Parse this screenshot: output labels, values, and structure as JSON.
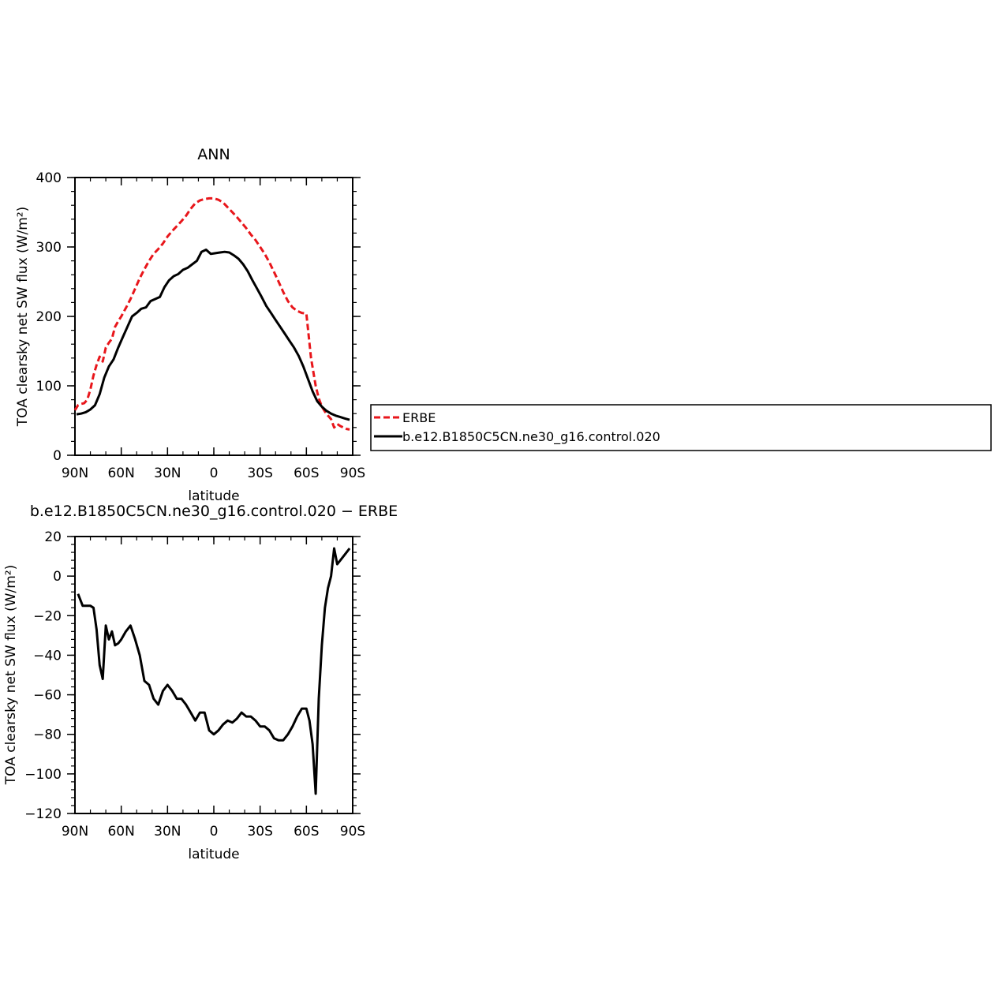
{
  "chart_data": [
    {
      "type": "line",
      "title": "ANN",
      "xlabel": "latitude",
      "ylabel": "TOA clearsky net SW flux (W/m²)",
      "xlim": [
        90,
        -90
      ],
      "ylim": [
        0,
        400
      ],
      "x_ticks": [
        90,
        60,
        30,
        0,
        -30,
        -60,
        -90
      ],
      "x_tick_labels": [
        "90N",
        "60N",
        "30N",
        "0",
        "30S",
        "60S",
        "90S"
      ],
      "y_ticks": [
        0,
        100,
        200,
        300,
        400
      ],
      "y_tick_labels": [
        "0",
        "100",
        "200",
        "300",
        "400"
      ],
      "legend": {
        "placement": "right",
        "entries": [
          {
            "label": "ERBE",
            "color": "#e8161b",
            "dash": true
          },
          {
            "label": "b.e12.B1850C5CN.ne30_g16.control.020",
            "color": "#000000",
            "dash": false
          }
        ]
      },
      "series": [
        {
          "name": "ERBE",
          "color": "#e8161b",
          "dash": true,
          "x": [
            90,
            88,
            86,
            84,
            82,
            80,
            78,
            76,
            74,
            72,
            70,
            68,
            66,
            64,
            62,
            60,
            57,
            54,
            51,
            48,
            45,
            42,
            39,
            36,
            33,
            30,
            27,
            24,
            21,
            18,
            15,
            12,
            9,
            6,
            3,
            0,
            -3,
            -6,
            -9,
            -12,
            -15,
            -18,
            -21,
            -24,
            -27,
            -30,
            -33,
            -36,
            -39,
            -42,
            -45,
            -48,
            -51,
            -54,
            -57,
            -60,
            -63,
            -66,
            -68,
            -70,
            -72,
            -74,
            -76,
            -78,
            -80,
            -82,
            -84,
            -86,
            -88
          ],
          "y": [
            65,
            72,
            74,
            75,
            80,
            95,
            115,
            130,
            142,
            135,
            155,
            162,
            168,
            185,
            193,
            200,
            212,
            225,
            240,
            255,
            268,
            280,
            290,
            297,
            305,
            315,
            323,
            330,
            337,
            345,
            355,
            363,
            367,
            369,
            370,
            370,
            368,
            364,
            357,
            350,
            343,
            335,
            327,
            318,
            310,
            300,
            290,
            278,
            264,
            250,
            235,
            222,
            213,
            208,
            205,
            204,
            140,
            100,
            82,
            70,
            63,
            57,
            52,
            40,
            45,
            42,
            40,
            38,
            37
          ]
        },
        {
          "name": "b.e12.B1850C5CN.ne30_g16.control.020",
          "color": "#000000",
          "dash": false,
          "x": [
            89,
            86,
            83,
            80,
            77,
            74,
            71,
            68,
            65,
            62,
            59,
            56,
            53,
            50,
            47,
            44,
            41,
            38,
            35,
            32,
            29,
            26,
            23,
            20,
            17,
            14,
            11,
            8,
            5,
            2,
            -1,
            -4,
            -7,
            -10,
            -13,
            -16,
            -19,
            -22,
            -25,
            -28,
            -31,
            -34,
            -37,
            -40,
            -43,
            -46,
            -49,
            -52,
            -55,
            -58,
            -61,
            -64,
            -67,
            -70,
            -73,
            -76,
            -79,
            -82,
            -85,
            -88
          ],
          "y": [
            59,
            60,
            62,
            66,
            72,
            88,
            112,
            128,
            138,
            155,
            170,
            185,
            200,
            205,
            211,
            213,
            222,
            225,
            228,
            242,
            252,
            258,
            261,
            267,
            270,
            275,
            280,
            293,
            296,
            290,
            291,
            292,
            293,
            292,
            288,
            283,
            275,
            265,
            252,
            240,
            228,
            215,
            205,
            195,
            185,
            175,
            165,
            155,
            143,
            128,
            110,
            92,
            78,
            70,
            64,
            60,
            57,
            55,
            53,
            51
          ]
        }
      ]
    },
    {
      "type": "line",
      "title": "b.e12.B1850C5CN.ne30_g16.control.020 − ERBE",
      "xlabel": "latitude",
      "ylabel": "TOA clearsky net SW flux (W/m²)",
      "xlim": [
        90,
        -90
      ],
      "ylim": [
        -120,
        20
      ],
      "x_ticks": [
        90,
        60,
        30,
        0,
        -30,
        -60,
        -90
      ],
      "x_tick_labels": [
        "90N",
        "60N",
        "30N",
        "0",
        "30S",
        "60S",
        "90S"
      ],
      "y_ticks": [
        20,
        0,
        -20,
        -40,
        -60,
        -80,
        -100,
        -120
      ],
      "y_tick_labels": [
        "20",
        "0",
        "−20",
        "−40",
        "−60",
        "−80",
        "−100",
        "−120"
      ],
      "series": [
        {
          "color": "#000000",
          "dash": false,
          "x": [
            88,
            85,
            82,
            80,
            78,
            76,
            74,
            72,
            70,
            68,
            66,
            64,
            62,
            60,
            57,
            54,
            51,
            48,
            45,
            42,
            39,
            36,
            33,
            30,
            27,
            24,
            21,
            18,
            15,
            12,
            9,
            6,
            3,
            0,
            -3,
            -6,
            -9,
            -12,
            -15,
            -18,
            -21,
            -24,
            -27,
            -30,
            -33,
            -36,
            -39,
            -42,
            -45,
            -48,
            -51,
            -54,
            -57,
            -60,
            -62,
            -64,
            -66,
            -68,
            -70,
            -72,
            -74,
            -76,
            -78,
            -80,
            -82,
            -84,
            -86,
            -88
          ],
          "y": [
            -9,
            -15,
            -15,
            -15,
            -16,
            -27,
            -45,
            -52,
            -25,
            -32,
            -28,
            -35,
            -34,
            -32,
            -28,
            -25,
            -32,
            -40,
            -53,
            -55,
            -62,
            -65,
            -58,
            -55,
            -58,
            -62,
            -62,
            -65,
            -69,
            -73,
            -69,
            -69,
            -78,
            -80,
            -78,
            -75,
            -73,
            -74,
            -72,
            -69,
            -71,
            -71,
            -73,
            -76,
            -76,
            -78,
            -82,
            -83,
            -83,
            -80,
            -76,
            -71,
            -67,
            -67,
            -73,
            -85,
            -110,
            -62,
            -35,
            -16,
            -6,
            0,
            14,
            6,
            8,
            10,
            12,
            14
          ]
        }
      ]
    }
  ]
}
